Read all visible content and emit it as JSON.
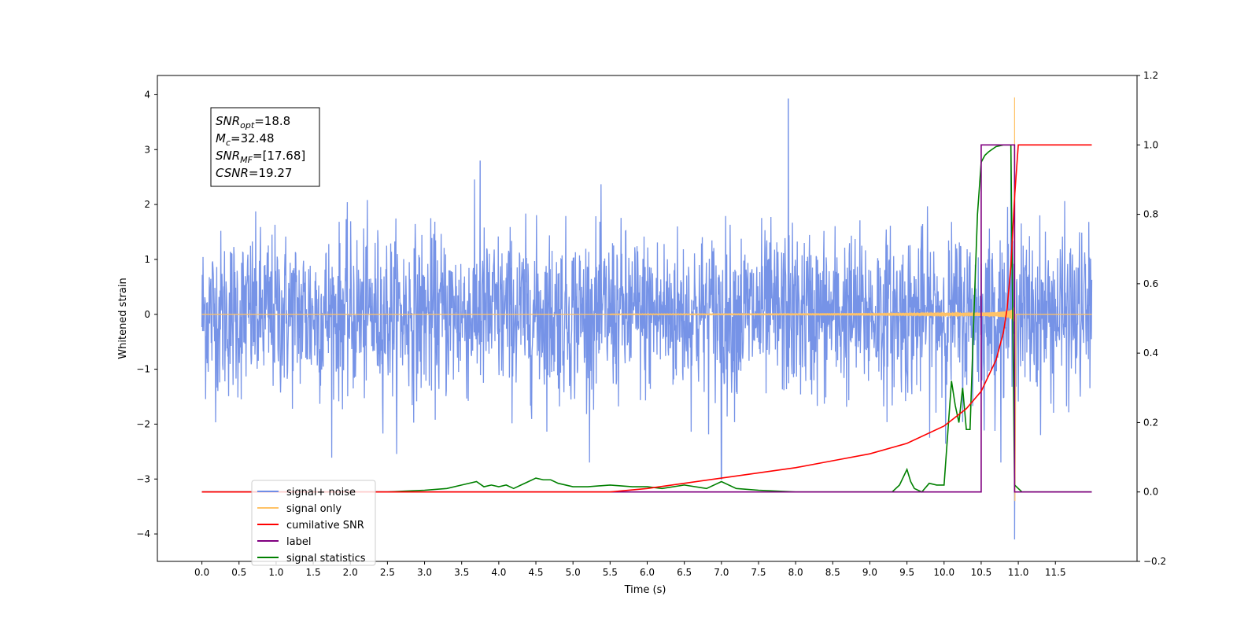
{
  "chart_data": {
    "type": "line",
    "title": "",
    "xlabel": "Time (s)",
    "ylabel": "Whitened strain",
    "y2label": "",
    "xlim": [
      -0.6,
      12.6
    ],
    "ylim": [
      -4.5,
      4.35
    ],
    "y2lim": [
      -0.2,
      1.2
    ],
    "x_ticks": [
      0.0,
      0.5,
      1.0,
      1.5,
      2.0,
      2.5,
      3.0,
      3.5,
      4.0,
      4.5,
      5.0,
      5.5,
      6.0,
      6.5,
      7.0,
      7.5,
      8.0,
      8.5,
      9.0,
      9.5,
      10.0,
      10.5,
      11.0,
      11.5
    ],
    "x_tick_labels": [
      "0.0",
      "0.5",
      "1.0",
      "1.5",
      "2.0",
      "2.5",
      "3.0",
      "3.5",
      "4.0",
      "4.5",
      "5.0",
      "5.5",
      "6.0",
      "6.5",
      "7.0",
      "7.5",
      "8.0",
      "8.5",
      "9.0",
      "9.5",
      "10.0",
      "10.5",
      "11.0",
      "11.5"
    ],
    "y_ticks": [
      -4,
      -3,
      -2,
      -1,
      0,
      1,
      2,
      3,
      4
    ],
    "y_tick_labels": [
      "−4",
      "−3",
      "−2",
      "−1",
      "0",
      "1",
      "2",
      "3",
      "4"
    ],
    "y2_ticks": [
      -0.2,
      0.0,
      0.2,
      0.4,
      0.6,
      0.8,
      1.0,
      1.2
    ],
    "y2_tick_labels": [
      "−0.2",
      "0.0",
      "0.2",
      "0.4",
      "0.6",
      "0.8",
      "1.0",
      "1.2"
    ],
    "grid": false,
    "legend_placement": "lower-left",
    "legend": [
      {
        "label": "signal+ noise",
        "color": "#6f8de6"
      },
      {
        "label": "signal only",
        "color": "#ffc266"
      },
      {
        "label": "cumilative SNR",
        "color": "#ff0000"
      },
      {
        "label": "label",
        "color": "#800080"
      },
      {
        "label": "signal statistics",
        "color": "#008000"
      }
    ],
    "annotation": {
      "lines": [
        {
          "main": "SNR",
          "sub": "opt",
          "value": "=18.8"
        },
        {
          "main": "M",
          "sub": "c",
          "value": "=32.48"
        },
        {
          "main": "SNR",
          "sub": "MF",
          "value": "=[17.68]"
        },
        {
          "main": "CSNR",
          "sub": "",
          "value": "=19.27"
        }
      ]
    },
    "series": [
      {
        "name": "signal+ noise",
        "axis": "left",
        "color": "#6f8de6",
        "description_points": {
          "x_range": [
            0.0,
            11.99
          ],
          "typical_amplitude": 1.6,
          "peaks": [
            [
              7.9,
              3.93
            ],
            [
              10.95,
              -4.1
            ],
            [
              7.0,
              -3.0
            ],
            [
              3.75,
              2.8
            ],
            [
              10.9,
              2.95
            ]
          ]
        }
      },
      {
        "name": "signal only",
        "axis": "left",
        "color": "#ffc266",
        "chirp": {
          "start": 5.5,
          "merger": 10.95,
          "peak": 3.95,
          "min": -3.4
        }
      },
      {
        "name": "cumilative SNR",
        "axis": "right",
        "color": "#ff0000",
        "x": [
          0.0,
          5.5,
          6.0,
          6.5,
          7.0,
          7.5,
          8.0,
          8.5,
          9.0,
          9.5,
          10.0,
          10.3,
          10.5,
          10.7,
          10.8,
          10.85,
          10.9,
          10.95,
          11.0,
          11.99
        ],
        "y": [
          0.0,
          0.0,
          0.01,
          0.025,
          0.04,
          0.055,
          0.07,
          0.09,
          0.11,
          0.14,
          0.19,
          0.24,
          0.29,
          0.38,
          0.46,
          0.53,
          0.65,
          0.85,
          1.0,
          1.0
        ]
      },
      {
        "name": "label",
        "axis": "right",
        "color": "#800080",
        "x": [
          0.0,
          10.5,
          10.5,
          10.95,
          10.95,
          11.99
        ],
        "y": [
          0.0,
          0.0,
          1.0,
          1.0,
          0.0,
          0.0
        ]
      },
      {
        "name": "signal statistics",
        "axis": "right",
        "color": "#008000",
        "x": [
          0.0,
          2.5,
          3.0,
          3.3,
          3.5,
          3.7,
          3.8,
          3.9,
          4.0,
          4.1,
          4.2,
          4.3,
          4.4,
          4.5,
          4.6,
          4.7,
          4.8,
          5.0,
          5.2,
          5.5,
          5.8,
          6.0,
          6.2,
          6.5,
          6.8,
          7.0,
          7.2,
          7.5,
          8.0,
          9.0,
          9.3,
          9.4,
          9.5,
          9.55,
          9.6,
          9.7,
          9.8,
          9.9,
          10.0,
          10.1,
          10.15,
          10.2,
          10.25,
          10.3,
          10.35,
          10.4,
          10.45,
          10.5,
          10.55,
          10.6,
          10.7,
          10.8,
          10.9,
          10.95,
          11.0,
          11.05,
          11.99
        ],
        "y": [
          0.0,
          0.0,
          0.005,
          0.01,
          0.02,
          0.03,
          0.015,
          0.02,
          0.015,
          0.02,
          0.01,
          0.02,
          0.03,
          0.04,
          0.035,
          0.035,
          0.025,
          0.015,
          0.015,
          0.02,
          0.015,
          0.015,
          0.01,
          0.02,
          0.01,
          0.03,
          0.01,
          0.005,
          0.0,
          0.0,
          0.0,
          0.02,
          0.065,
          0.03,
          0.01,
          0.0,
          0.025,
          0.02,
          0.02,
          0.32,
          0.25,
          0.2,
          0.3,
          0.18,
          0.18,
          0.5,
          0.8,
          0.95,
          0.97,
          0.98,
          0.995,
          1.0,
          1.0,
          0.02,
          0.01,
          0.0,
          0.0
        ]
      }
    ]
  }
}
